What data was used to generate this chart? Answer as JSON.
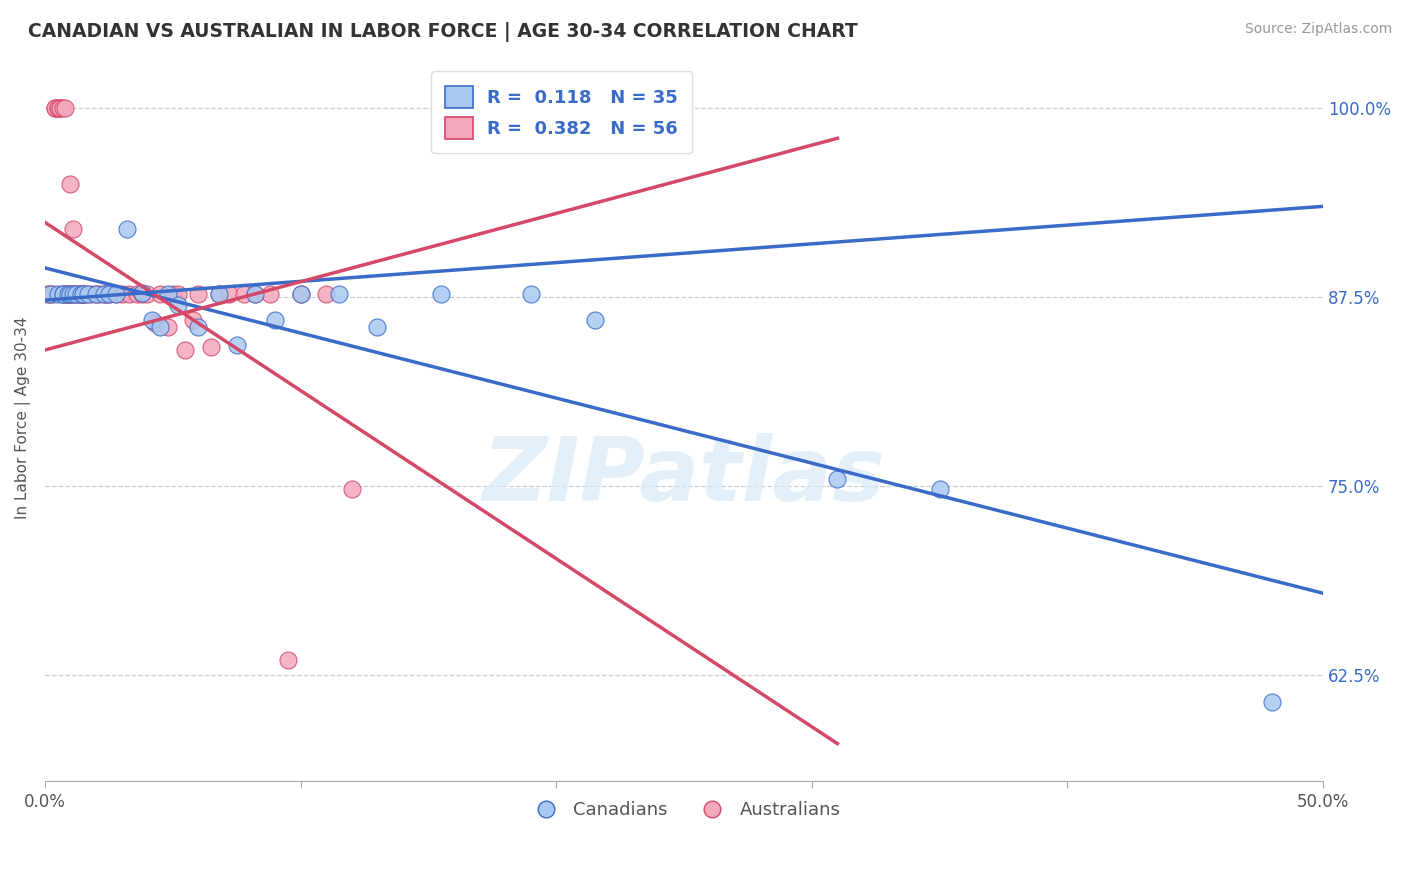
{
  "title": "CANADIAN VS AUSTRALIAN IN LABOR FORCE | AGE 30-34 CORRELATION CHART",
  "source": "Source: ZipAtlas.com",
  "ylabel": "In Labor Force | Age 30-34",
  "xlim": [
    0.0,
    0.5
  ],
  "ylim": [
    0.555,
    1.035
  ],
  "ytick_positions": [
    0.625,
    0.75,
    0.875,
    1.0
  ],
  "ytick_labels": [
    "62.5%",
    "75.0%",
    "87.5%",
    "100.0%"
  ],
  "canadian_color": "#A8C8F0",
  "australian_color": "#F4A8BC",
  "trendline_canadian_color": "#3B6BC8",
  "trendline_australian_color": "#D44868",
  "R_canadian": 0.118,
  "N_canadian": 35,
  "R_australian": 0.382,
  "N_australian": 56,
  "grid_color": "#CCCCCC",
  "watermark": "ZIPatlas",
  "canadian_x": [
    0.002,
    0.005,
    0.007,
    0.007,
    0.009,
    0.01,
    0.011,
    0.012,
    0.014,
    0.015,
    0.017,
    0.02,
    0.023,
    0.025,
    0.028,
    0.032,
    0.038,
    0.042,
    0.045,
    0.048,
    0.052,
    0.06,
    0.068,
    0.075,
    0.082,
    0.09,
    0.1,
    0.115,
    0.13,
    0.155,
    0.19,
    0.215,
    0.31,
    0.35,
    0.48
  ],
  "canadian_y": [
    0.877,
    0.877,
    0.877,
    0.877,
    0.877,
    0.877,
    0.877,
    0.877,
    0.877,
    0.877,
    0.877,
    0.877,
    0.877,
    0.877,
    0.877,
    0.92,
    0.878,
    0.86,
    0.855,
    0.877,
    0.87,
    0.855,
    0.877,
    0.843,
    0.877,
    0.86,
    0.877,
    0.877,
    0.855,
    0.877,
    0.877,
    0.86,
    0.755,
    0.748,
    0.607
  ],
  "australian_x": [
    0.001,
    0.002,
    0.003,
    0.004,
    0.004,
    0.005,
    0.005,
    0.006,
    0.006,
    0.007,
    0.007,
    0.008,
    0.008,
    0.009,
    0.009,
    0.01,
    0.01,
    0.011,
    0.011,
    0.012,
    0.013,
    0.014,
    0.014,
    0.015,
    0.015,
    0.016,
    0.018,
    0.02,
    0.021,
    0.023,
    0.024,
    0.025,
    0.028,
    0.03,
    0.033,
    0.036,
    0.038,
    0.04,
    0.043,
    0.045,
    0.048,
    0.05,
    0.052,
    0.055,
    0.058,
    0.06,
    0.065,
    0.068,
    0.072,
    0.078,
    0.082,
    0.088,
    0.095,
    0.1,
    0.11,
    0.12
  ],
  "australian_y": [
    0.877,
    0.877,
    0.877,
    1.0,
    1.0,
    1.0,
    1.0,
    1.0,
    1.0,
    1.0,
    0.877,
    1.0,
    0.877,
    0.877,
    0.877,
    0.95,
    0.877,
    0.877,
    0.92,
    0.877,
    0.877,
    0.877,
    0.877,
    0.877,
    0.877,
    0.877,
    0.877,
    0.877,
    0.877,
    0.877,
    0.877,
    0.877,
    0.877,
    0.877,
    0.877,
    0.877,
    0.877,
    0.877,
    0.858,
    0.877,
    0.855,
    0.877,
    0.877,
    0.84,
    0.86,
    0.877,
    0.842,
    0.877,
    0.877,
    0.877,
    0.877,
    0.877,
    0.635,
    0.877,
    0.877,
    0.748
  ]
}
